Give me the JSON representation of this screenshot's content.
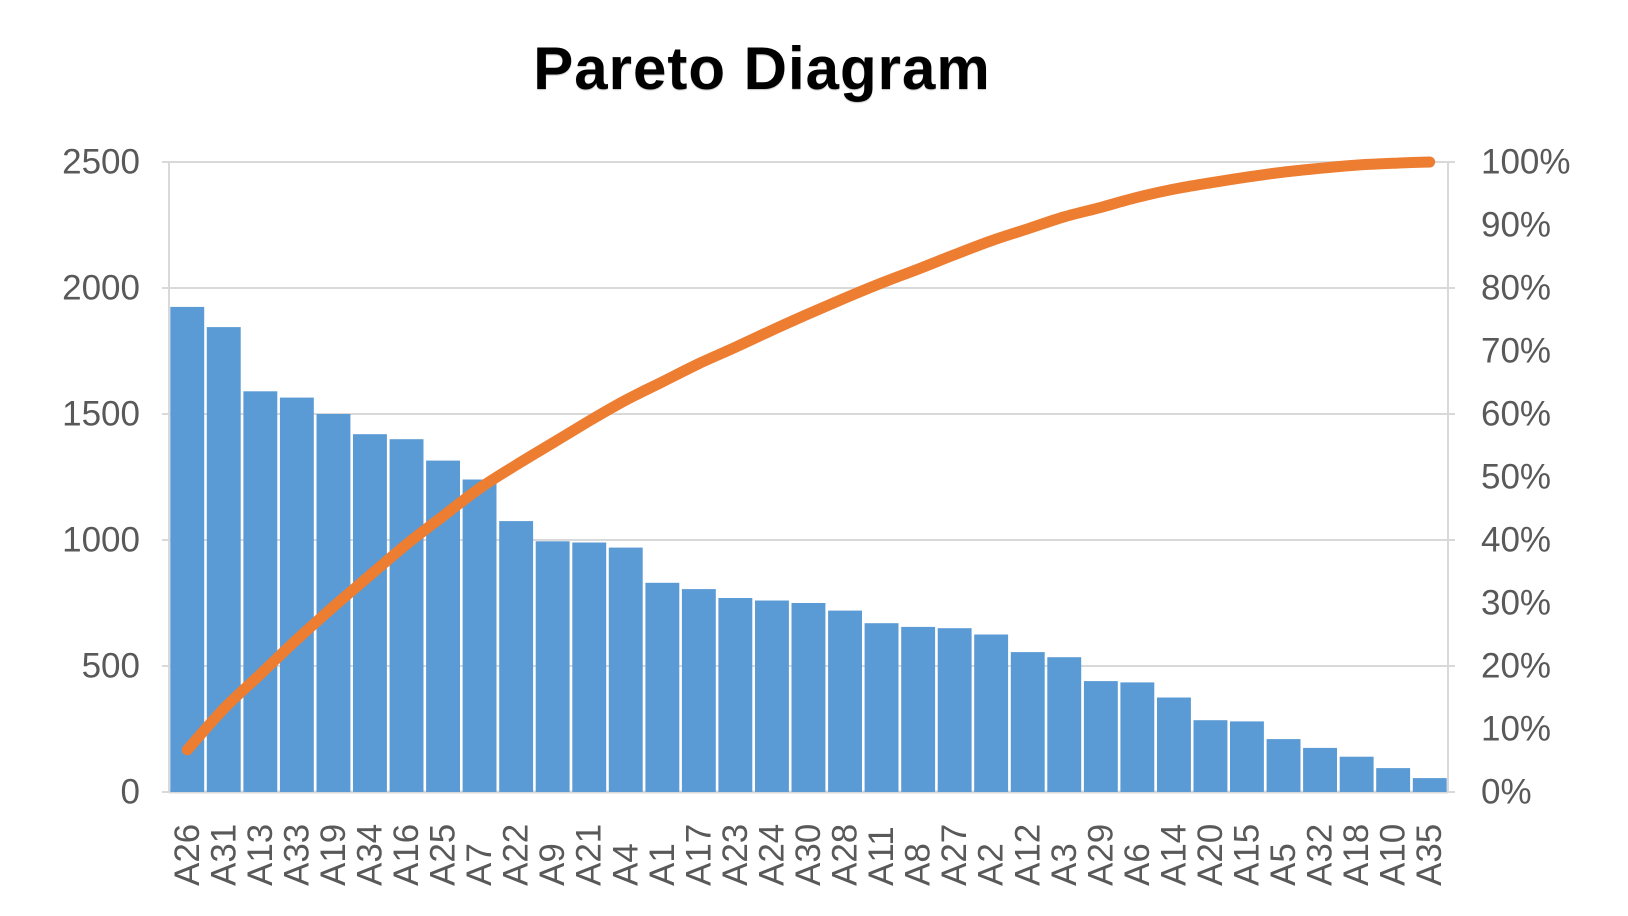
{
  "chart_data": {
    "type": "bar",
    "variant": "pareto (descending bars + cumulative percentage line, dual axis)",
    "title": "Pareto Diagram",
    "categories": [
      "A26",
      "A31",
      "A13",
      "A33",
      "A19",
      "A34",
      "A16",
      "A25",
      "A7",
      "A22",
      "A9",
      "A21",
      "A4",
      "A1",
      "A17",
      "A23",
      "A24",
      "A30",
      "A28",
      "A11",
      "A8",
      "A27",
      "A2",
      "A12",
      "A3",
      "A29",
      "A6",
      "A14",
      "A20",
      "A15",
      "A5",
      "A32",
      "A18",
      "A10",
      "A35"
    ],
    "bar_values": [
      1925,
      1845,
      1590,
      1565,
      1500,
      1420,
      1400,
      1315,
      1240,
      1075,
      995,
      990,
      970,
      830,
      805,
      770,
      760,
      750,
      720,
      670,
      655,
      650,
      625,
      555,
      535,
      440,
      435,
      375,
      285,
      280,
      210,
      175,
      140,
      95,
      55
    ],
    "cumulative_pct": [
      6.7,
      13.2,
      18.7,
      24.2,
      29.4,
      34.4,
      39.3,
      43.8,
      48.2,
      51.9,
      55.4,
      58.9,
      62.2,
      65.1,
      68.0,
      70.6,
      73.3,
      75.9,
      78.4,
      80.8,
      83.0,
      85.3,
      87.5,
      89.4,
      91.3,
      92.8,
      94.4,
      95.7,
      96.7,
      97.6,
      98.4,
      99.0,
      99.5,
      99.8,
      100.0
    ],
    "left_axis": {
      "min": 0,
      "max": 2500,
      "step": 500,
      "tick_labels": [
        "0",
        "500",
        "1000",
        "1500",
        "2000",
        "2500"
      ]
    },
    "right_axis": {
      "min_pct": 0,
      "max_pct": 100,
      "step_pct": 10,
      "tick_labels": [
        "0%",
        "10%",
        "20%",
        "30%",
        "40%",
        "50%",
        "60%",
        "70%",
        "80%",
        "90%",
        "100%"
      ]
    },
    "legend_position": "none",
    "grid": "horizontal gridlines at left-axis major ticks",
    "colors": {
      "bar": "#5b9bd5",
      "line": "#ed7d31",
      "axis_text": "#595959",
      "gridline": "#d9d9d9",
      "background": "#ffffff",
      "title_text": "#000000"
    }
  }
}
